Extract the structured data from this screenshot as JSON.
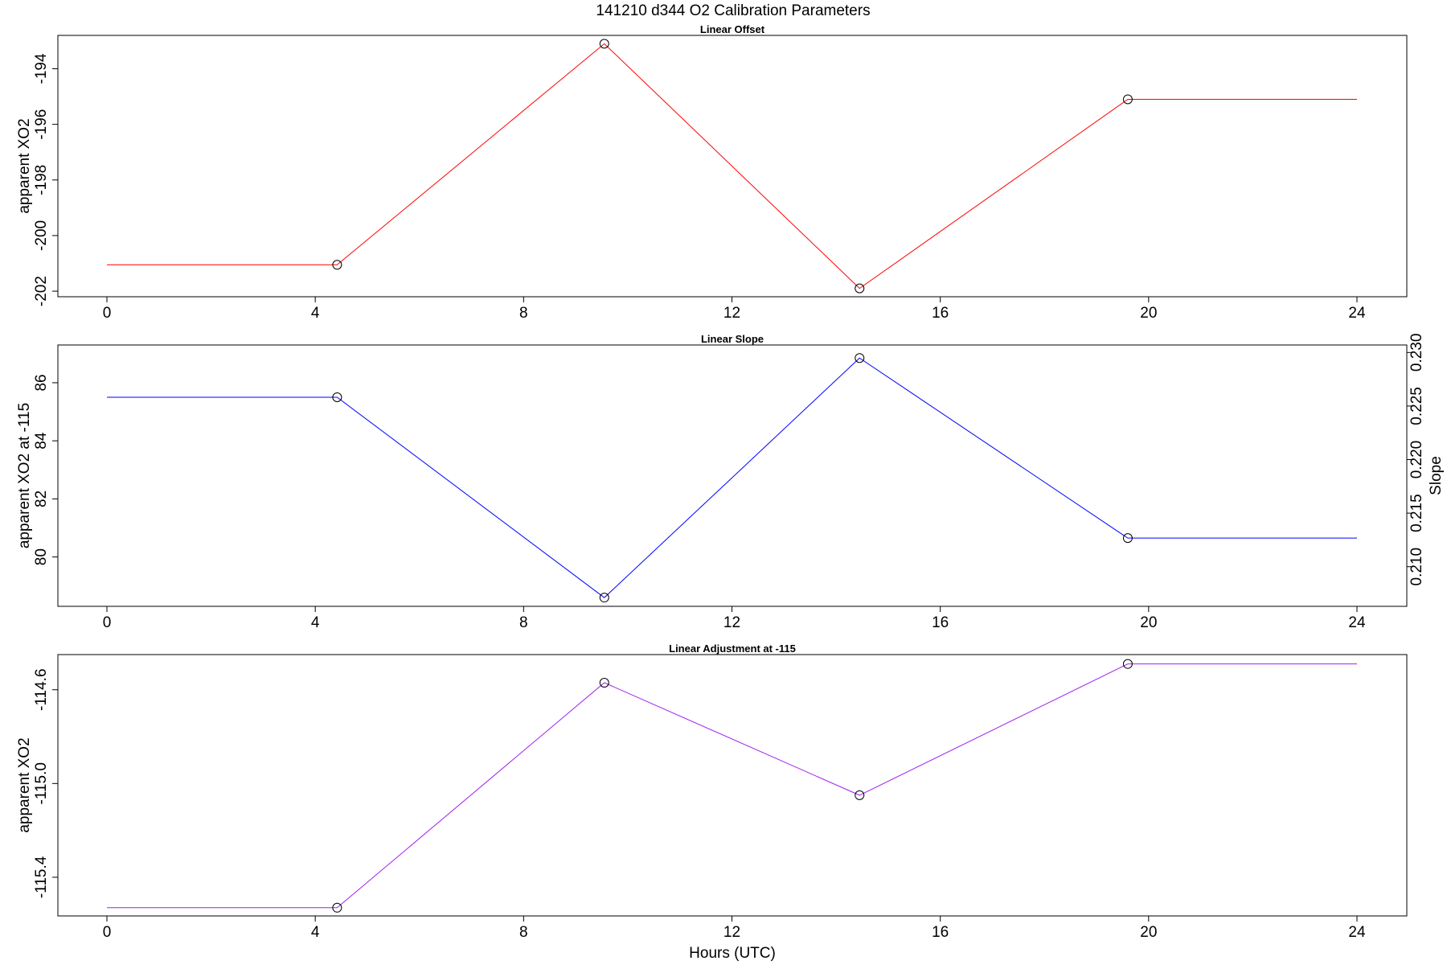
{
  "figure_title": "141210   d344   O2 Calibration Parameters",
  "x_axis_label": "Hours (UTC)",
  "chart_data": [
    {
      "type": "line",
      "title": "Linear Offset",
      "ylabel": "apparent XO2",
      "xlim": [
        0,
        24
      ],
      "ylim": [
        -202.2,
        -192.8
      ],
      "x_ticks": [
        0,
        4,
        8,
        12,
        16,
        20,
        24
      ],
      "y_ticks": [
        -202,
        -200,
        -198,
        -196,
        -194
      ],
      "show_x_axis_label": false,
      "series": [
        {
          "color": "#ff0000",
          "x": [
            0,
            4.42,
            9.55,
            14.45,
            19.6,
            24
          ],
          "y": [
            -201.05,
            -201.05,
            -193.1,
            -201.9,
            -195.1,
            -195.1
          ],
          "markers": [
            false,
            true,
            true,
            true,
            true,
            false
          ]
        }
      ]
    },
    {
      "type": "line",
      "title": "Linear Slope",
      "ylabel": "apparent XO2 at -115",
      "y2label": "Slope",
      "xlim": [
        0,
        24
      ],
      "ylim": [
        78.3,
        87.3
      ],
      "x_ticks": [
        0,
        4,
        8,
        12,
        16,
        20,
        24
      ],
      "y_ticks": [
        80,
        82,
        84,
        86
      ],
      "y2lim": [
        0.2063,
        0.2307
      ],
      "y2_ticks": [
        "0.210",
        "0.215",
        "0.220",
        "0.225",
        "0.230"
      ],
      "show_x_axis_label": false,
      "series": [
        {
          "color": "#0000ff",
          "x": [
            0,
            4.42,
            9.55,
            14.45,
            19.6,
            24
          ],
          "y": [
            85.5,
            85.5,
            78.6,
            86.85,
            80.65,
            80.65
          ],
          "markers": [
            false,
            true,
            true,
            true,
            true,
            false
          ]
        }
      ]
    },
    {
      "type": "line",
      "title": "Linear Adjustment at -115",
      "ylabel": "apparent XO2",
      "xlim": [
        0,
        24
      ],
      "ylim": [
        -115.565,
        -114.45
      ],
      "x_ticks": [
        0,
        4,
        8,
        12,
        16,
        20,
        24
      ],
      "y_ticks": [
        "-115.4",
        "-115.0",
        "-114.6"
      ],
      "show_x_axis_label": true,
      "series": [
        {
          "color": "#a020f0",
          "x": [
            0,
            4.42,
            9.55,
            14.45,
            19.6,
            24
          ],
          "y": [
            -115.53,
            -115.53,
            -114.57,
            -115.05,
            -114.49,
            -114.49
          ],
          "markers": [
            false,
            true,
            true,
            true,
            true,
            false
          ]
        }
      ]
    }
  ]
}
